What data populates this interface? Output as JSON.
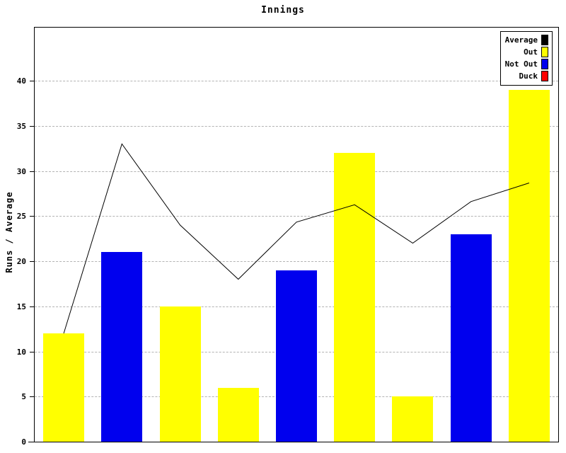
{
  "chart_data": {
    "type": "bar+line",
    "title": "Innings",
    "ylabel": "Runs / Average",
    "xlabel": "",
    "yticks": [
      0,
      5,
      10,
      15,
      20,
      25,
      30,
      35,
      40
    ],
    "ylim": [
      0,
      45.9
    ],
    "grid": "horizontal-dashed",
    "legend_position": "top-right",
    "x_axis_labels_visible": false,
    "bars": [
      {
        "value": 12,
        "status": "Out"
      },
      {
        "value": 21,
        "status": "Not Out"
      },
      {
        "value": 15,
        "status": "Out"
      },
      {
        "value": 6,
        "status": "Out"
      },
      {
        "value": 19,
        "status": "Not Out"
      },
      {
        "value": 32,
        "status": "Out"
      },
      {
        "value": 5,
        "status": "Out"
      },
      {
        "value": 23,
        "status": "Not Out"
      },
      {
        "value": 39,
        "status": "Out"
      }
    ],
    "line_series": {
      "name": "Average",
      "values": [
        12,
        33,
        24,
        18,
        24.33,
        26.25,
        22,
        26.6,
        28.67
      ]
    },
    "legend": [
      {
        "label": "Average",
        "color": "#000000"
      },
      {
        "label": "Out",
        "color": "#ffff00"
      },
      {
        "label": "Not Out",
        "color": "#0000ee"
      },
      {
        "label": "Duck",
        "color": "#ff0000"
      }
    ],
    "colors": {
      "Average": "#000000",
      "Out": "#ffff00",
      "Not Out": "#0000ee",
      "Duck": "#ff0000",
      "grid": "#b3b3b3",
      "axis": "#000000",
      "background": "#ffffff"
    }
  }
}
